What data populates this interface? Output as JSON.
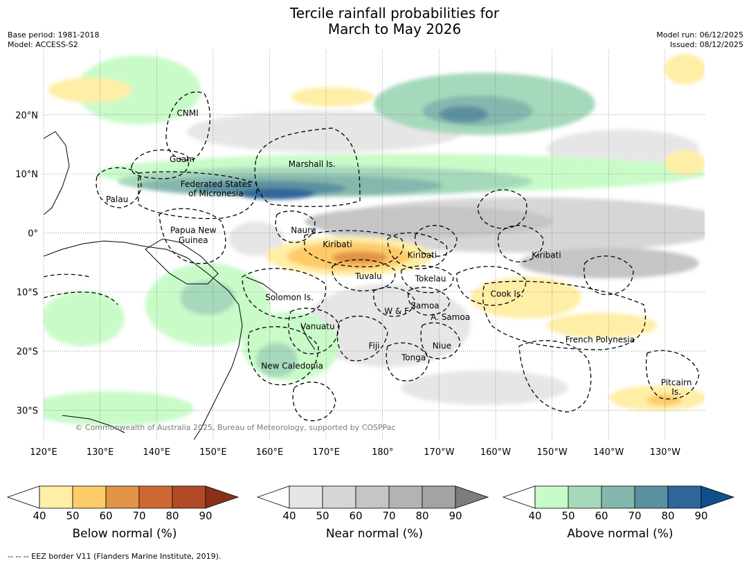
{
  "title": {
    "line1": "Tercile rainfall probabilities for",
    "line2": "March to May 2026"
  },
  "meta": {
    "base_period": "Base period: 1981-2018",
    "model": "Model: ACCESS-S2",
    "model_run": "Model run: 06/12/2025",
    "issued": "Issued: 08/12/2025"
  },
  "map": {
    "lon_range": [
      120,
      237
    ],
    "lat_range": [
      -35,
      31
    ],
    "lon_ticks": [
      {
        "lon": 120,
        "label": "120°E"
      },
      {
        "lon": 130,
        "label": "130°E"
      },
      {
        "lon": 140,
        "label": "140°E"
      },
      {
        "lon": 150,
        "label": "150°E"
      },
      {
        "lon": 160,
        "label": "160°E"
      },
      {
        "lon": 170,
        "label": "170°E"
      },
      {
        "lon": 180,
        "label": "180°"
      },
      {
        "lon": 190,
        "label": "170°W"
      },
      {
        "lon": 200,
        "label": "160°W"
      },
      {
        "lon": 210,
        "label": "150°W"
      },
      {
        "lon": 220,
        "label": "140°W"
      },
      {
        "lon": 230,
        "label": "130°W"
      }
    ],
    "lat_ticks": [
      {
        "lat": 20,
        "label": "20°N"
      },
      {
        "lat": 10,
        "label": "10°N"
      },
      {
        "lat": 0,
        "label": "0°"
      },
      {
        "lat": -10,
        "label": "10°S"
      },
      {
        "lat": -20,
        "label": "20°S"
      },
      {
        "lat": -30,
        "label": "30°S"
      }
    ],
    "grid": true,
    "copyright": "© Commonwealth of Australia 2025, Bureau of Meteorology, supported by COSPPac",
    "regions": [
      {
        "name": "CNMI",
        "lon": 145.5,
        "lat": 19.8
      },
      {
        "name": "Guam",
        "lon": 144.5,
        "lat": 12.0
      },
      {
        "name": "Marshall Is.",
        "lon": 167.5,
        "lat": 11.2
      },
      {
        "name": "Federated States",
        "lon": 150.5,
        "lat": 7.8
      },
      {
        "name": "of Micronesia",
        "lon": 150.5,
        "lat": 6.2
      },
      {
        "name": "Palau",
        "lon": 133.0,
        "lat": 5.2
      },
      {
        "name": "Papua New",
        "lon": 146.5,
        "lat": 0.0
      },
      {
        "name": "Guinea",
        "lon": 146.5,
        "lat": -1.7
      },
      {
        "name": "Nauru",
        "lon": 166.0,
        "lat": 0.0
      },
      {
        "name": "Kiribati",
        "lon": 172.0,
        "lat": -2.4
      },
      {
        "name": "Kiribati",
        "lon": 187.0,
        "lat": -4.2
      },
      {
        "name": "Kiribati",
        "lon": 209.0,
        "lat": -4.2
      },
      {
        "name": "Tuvalu",
        "lon": 177.5,
        "lat": -7.8
      },
      {
        "name": "Tokelau",
        "lon": 188.5,
        "lat": -8.2
      },
      {
        "name": "Cook Is.",
        "lon": 202.0,
        "lat": -10.8
      },
      {
        "name": "Solomon Is.",
        "lon": 163.5,
        "lat": -11.4
      },
      {
        "name": "W & F",
        "lon": 182.5,
        "lat": -13.7
      },
      {
        "name": "Samoa",
        "lon": 187.5,
        "lat": -12.8
      },
      {
        "name": "A. Samoa",
        "lon": 192.0,
        "lat": -14.7
      },
      {
        "name": "Vanuatu",
        "lon": 168.5,
        "lat": -16.3
      },
      {
        "name": "Fiji",
        "lon": 178.5,
        "lat": -19.6
      },
      {
        "name": "Niue",
        "lon": 190.5,
        "lat": -19.6
      },
      {
        "name": "French Polynesia",
        "lon": 218.5,
        "lat": -18.5
      },
      {
        "name": "Tonga",
        "lon": 185.5,
        "lat": -21.6
      },
      {
        "name": "New Caledonia",
        "lon": 164.0,
        "lat": -23.0
      },
      {
        "name": "Pitcairn",
        "lon": 232.0,
        "lat": -25.8
      },
      {
        "name": "Is.",
        "lon": 232.0,
        "lat": -27.4
      }
    ]
  },
  "colorbars": [
    {
      "title": "Below normal (%)",
      "ticks": [
        "40",
        "50",
        "60",
        "70",
        "80",
        "90"
      ],
      "colors": [
        "#ffeea6",
        "#fdcb6a",
        "#e19445",
        "#cf6934",
        "#b04b26"
      ],
      "under": "#ffffff",
      "over": "#8a3118"
    },
    {
      "title": "Near normal (%)",
      "ticks": [
        "40",
        "50",
        "60",
        "70",
        "80",
        "90"
      ],
      "colors": [
        "#e6e6e6",
        "#d6d6d6",
        "#c5c5c5",
        "#b3b3b3",
        "#a3a3a3"
      ],
      "under": "#ffffff",
      "over": "#7d7d7d"
    },
    {
      "title": "Above normal (%)",
      "ticks": [
        "40",
        "50",
        "60",
        "70",
        "80",
        "90"
      ],
      "colors": [
        "#c9fbc9",
        "#a6d9bb",
        "#86b7ae",
        "#5b90a0",
        "#30659a"
      ],
      "under": "#ffffff",
      "over": "#104f8a"
    }
  ],
  "footnote": "--  --  -- EEZ border V11 (Flanders Marine Institute, 2019)."
}
